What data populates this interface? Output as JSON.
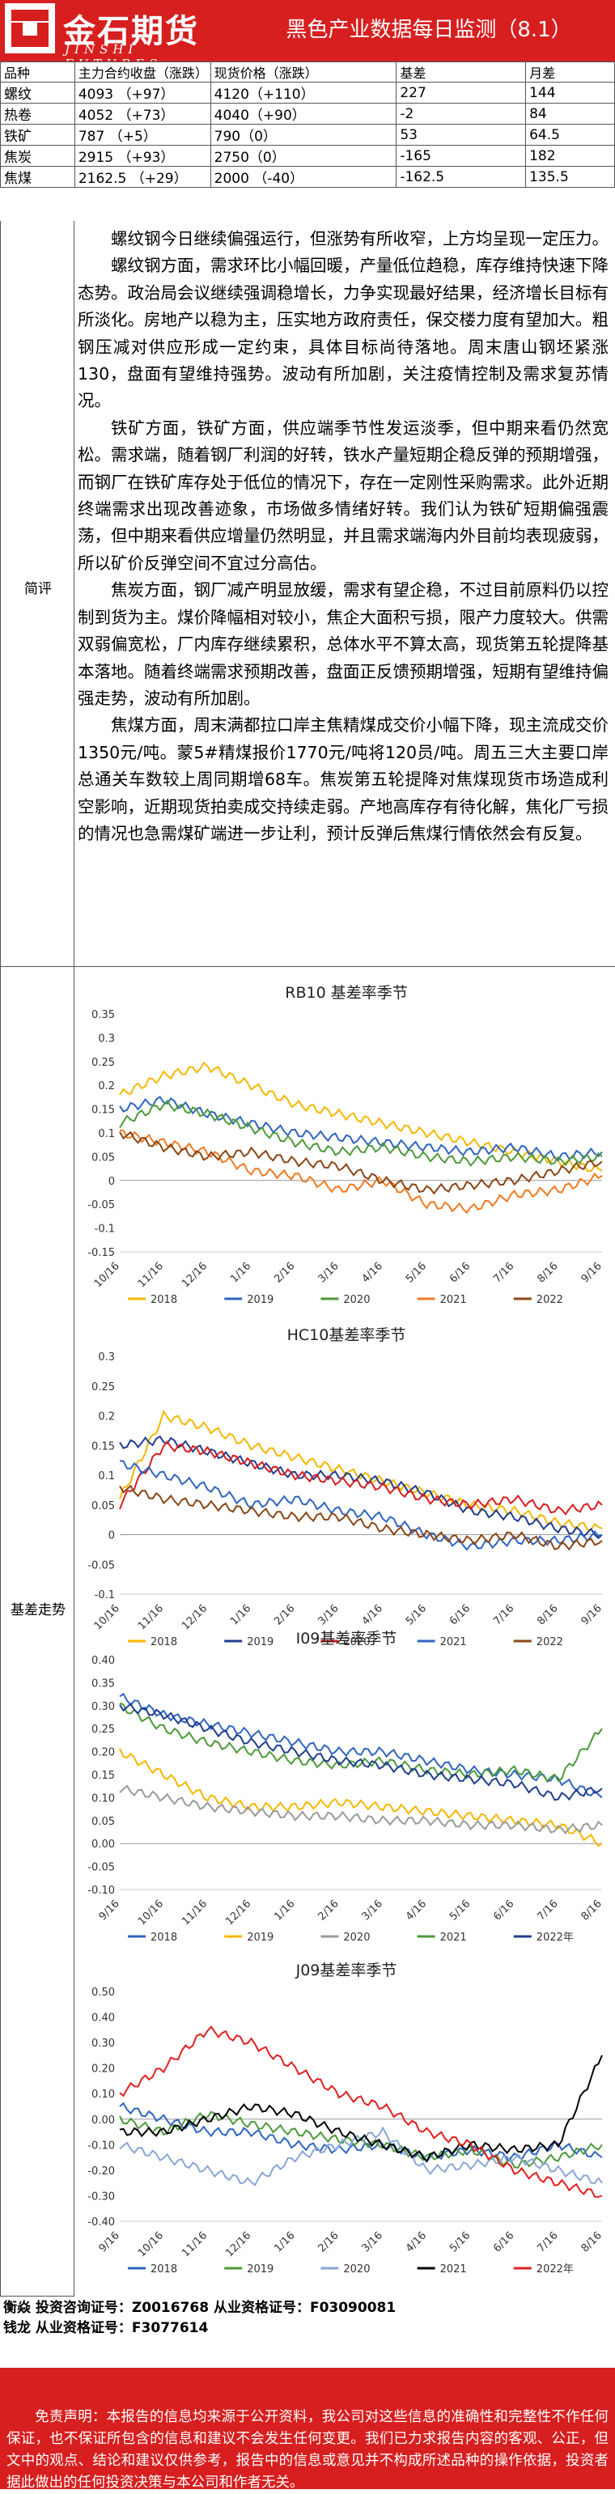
{
  "header": {
    "logo_cn": "金石期货",
    "logo_en": "JINSHI FUTURES",
    "title": "黑色产业数据每日监测（8.1）"
  },
  "table": {
    "headers": [
      "品种",
      "主力合约收盘（涨跌）",
      "现货价格（涨跌）",
      "基差",
      "月差"
    ],
    "rows": [
      [
        "螺纹",
        "4093 （+97）",
        "4120（+110）",
        "227",
        "144"
      ],
      [
        "热卷",
        "4052 （+73）",
        "4040（+90）",
        "-2",
        "84"
      ],
      [
        "铁矿",
        "787 （+5）",
        "790（0）",
        "53",
        "64.5"
      ],
      [
        "焦炭",
        "2915 （+93）",
        "2750（0）",
        "-165",
        "182"
      ],
      [
        "焦煤",
        "2162.5 （+29）",
        "2000 （-40）",
        "-162.5",
        "135.5"
      ]
    ]
  },
  "comment": {
    "label": "简评",
    "paragraphs": [
      "螺纹钢今日继续偏强运行，但涨势有所收窄，上方均呈现一定压力。",
      "螺纹钢方面，需求环比小幅回暖，产量低位趋稳，库存维持快速下降态势。政治局会议继续强调稳增长，力争实现最好结果，经济增长目标有所淡化。房地产以稳为主，压实地方政府责任，保交楼力度有望加大。粗钢压减对供应形成一定约束，具体目标尚待落地。周末唐山钢坯紧涨130，盘面有望维持强势。波动有所加剧，关注疫情控制及需求复苏情况。",
      "铁矿方面，铁矿方面，供应端季节性发运淡季，但中期来看仍然宽松。需求端，随着钢厂利润的好转，铁水产量短期企稳反弹的预期增强，而钢厂在铁矿库存处于低位的情况下，存在一定刚性采购需求。此外近期终端需求出现改善迹象，市场做多情绪好转。我们认为铁矿短期偏强震荡，但中期来看供应增量仍然明显，并且需求端海内外目前均表现疲弱，所以矿价反弹空间不宜过分高估。",
      "焦炭方面，钢厂减产明显放缓，需求有望企稳，不过目前原料仍以控制到货为主。煤价降幅相对较小，焦企大面积亏损，限产力度较大。供需双弱偏宽松，厂内库存继续累积，总体水平不算太高，现货第五轮提降基本落地。随着终端需求预期改善，盘面正反馈预期增强，短期有望维持偏强走势，波动有所加剧。",
      "焦煤方面，周末满都拉口岸主焦精煤成交价小幅下降，现主流成交价1350元/吨。蒙5#精煤报价1770元/吨将120员/吨。周五三大主要口岸总通关车数较上周同期增68车。焦炭第五轮提降对焦煤现货市场造成利空影响，近期现货拍卖成交持续走弱。产地高库存有待化解，焦化厂亏损的情况也急需煤矿端进一步让利，预计反弹后焦煤行情依然会有反复。"
    ]
  },
  "basis_label": "基差走势",
  "chart_data": [
    {
      "type": "line",
      "title": "RB10 基差率季节",
      "x_ticks": [
        "10/16",
        "11/16",
        "12/16",
        "1/16",
        "2/16",
        "3/16",
        "4/16",
        "5/16",
        "6/16",
        "7/16",
        "8/16",
        "9/16"
      ],
      "y_ticks": [
        "0.35",
        "0.3",
        "0.25",
        "0.2",
        "0.15",
        "0.1",
        "0.05",
        "0",
        "-0.05",
        "-0.1",
        "-0.15"
      ],
      "ylim": [
        -0.15,
        0.35
      ],
      "series": [
        {
          "name": "2018",
          "color": "#f5b800",
          "values": [
            0.18,
            0.22,
            0.24,
            0.2,
            0.16,
            0.14,
            0.12,
            0.1,
            0.08,
            0.06,
            0.04,
            0.02
          ]
        },
        {
          "name": "2019",
          "color": "#2f65c0",
          "values": [
            0.15,
            0.17,
            0.14,
            0.12,
            0.1,
            0.09,
            0.08,
            0.07,
            0.06,
            0.07,
            0.05,
            0.06
          ]
        },
        {
          "name": "2020",
          "color": "#4d9a3a",
          "values": [
            0.12,
            0.16,
            0.14,
            0.11,
            0.08,
            0.06,
            0.07,
            0.05,
            0.04,
            0.05,
            0.04,
            0.05
          ]
        },
        {
          "name": "2021",
          "color": "#f07a20",
          "values": [
            0.1,
            0.08,
            0.06,
            0.02,
            0.01,
            -0.02,
            0.0,
            -0.05,
            -0.06,
            -0.03,
            -0.02,
            0.01
          ]
        },
        {
          "name": "2022",
          "color": "#8a4515",
          "values": [
            0.1,
            0.07,
            0.05,
            0.06,
            0.04,
            0.03,
            0.0,
            -0.02,
            -0.01,
            0.0,
            0.02,
            0.04
          ]
        }
      ]
    },
    {
      "type": "line",
      "title": "HC10基差率季节",
      "x_ticks": [
        "10/16",
        "11/16",
        "12/16",
        "1/16",
        "2/16",
        "3/16",
        "4/16",
        "5/16",
        "6/16",
        "7/16",
        "8/16",
        "9/16"
      ],
      "y_ticks": [
        "0.3",
        "0.25",
        "0.2",
        "0.15",
        "0.1",
        "0.05",
        "0",
        "-0.05",
        "-0.1"
      ],
      "ylim": [
        -0.1,
        0.3
      ],
      "series": [
        {
          "name": "2018",
          "color": "#f5b800",
          "values": [
            0.06,
            0.2,
            0.18,
            0.15,
            0.13,
            0.11,
            0.09,
            0.07,
            0.05,
            0.04,
            0.02,
            0.01
          ]
        },
        {
          "name": "2019",
          "color": "#203e8f",
          "values": [
            0.15,
            0.16,
            0.14,
            0.12,
            0.1,
            0.1,
            0.09,
            0.07,
            0.04,
            0.03,
            0.01,
            0.0
          ]
        },
        {
          "name": "2020",
          "color": "#d71f1f",
          "values": [
            0.05,
            0.15,
            0.14,
            0.12,
            0.1,
            0.09,
            0.08,
            0.06,
            0.05,
            0.06,
            0.04,
            0.05
          ]
        },
        {
          "name": "2021",
          "color": "#2f65c0",
          "values": [
            0.12,
            0.1,
            0.08,
            0.05,
            0.06,
            0.04,
            0.03,
            0.0,
            -0.02,
            -0.01,
            -0.01,
            0.0
          ]
        },
        {
          "name": "2022",
          "color": "#8a4515",
          "values": [
            0.08,
            0.06,
            0.05,
            0.04,
            0.03,
            0.03,
            0.01,
            0.0,
            -0.01,
            0.0,
            -0.02,
            -0.01
          ]
        }
      ]
    },
    {
      "type": "line",
      "title": "I09基差率季节",
      "x_ticks": [
        "9/16",
        "10/16",
        "11/16",
        "12/16",
        "1/16",
        "2/16",
        "3/16",
        "4/16",
        "5/16",
        "6/16",
        "7/16",
        "8/16"
      ],
      "y_ticks": [
        "0.40",
        "0.35",
        "0.30",
        "0.25",
        "0.20",
        "0.15",
        "0.10",
        "0.05",
        "0.00",
        "-0.05",
        "-0.10"
      ],
      "ylim": [
        -0.1,
        0.4
      ],
      "series": [
        {
          "name": "2018",
          "color": "#2f65c0",
          "values": [
            0.32,
            0.28,
            0.26,
            0.24,
            0.22,
            0.2,
            0.2,
            0.18,
            0.16,
            0.15,
            0.14,
            0.1
          ]
        },
        {
          "name": "2019",
          "color": "#f5b800",
          "values": [
            0.2,
            0.15,
            0.1,
            0.08,
            0.08,
            0.09,
            0.08,
            0.07,
            0.06,
            0.05,
            0.04,
            0.0
          ]
        },
        {
          "name": "2020",
          "color": "#9a9a9a",
          "values": [
            0.12,
            0.1,
            0.08,
            0.07,
            0.06,
            0.06,
            0.05,
            0.05,
            0.04,
            0.04,
            0.03,
            0.04
          ]
        },
        {
          "name": "2021",
          "color": "#4d9a3a",
          "values": [
            0.3,
            0.25,
            0.22,
            0.2,
            0.18,
            0.17,
            0.18,
            0.16,
            0.15,
            0.16,
            0.14,
            0.25
          ]
        },
        {
          "name": "2022年",
          "color": "#203e8f",
          "values": [
            0.3,
            0.28,
            0.25,
            0.22,
            0.2,
            0.18,
            0.17,
            0.15,
            0.14,
            0.13,
            0.1,
            0.12
          ]
        }
      ]
    },
    {
      "type": "line",
      "title": "J09基差率季节",
      "x_ticks": [
        "9/16",
        "10/16",
        "11/16",
        "12/16",
        "1/16",
        "2/16",
        "3/16",
        "4/16",
        "5/16",
        "6/16",
        "7/16",
        "8/16"
      ],
      "y_ticks": [
        "0.50",
        "0.40",
        "0.30",
        "0.20",
        "0.10",
        "0.00",
        "-0.10",
        "-0.20",
        "-0.30",
        "-0.40"
      ],
      "ylim": [
        -0.4,
        0.5
      ],
      "series": [
        {
          "name": "2018",
          "color": "#2f65c0",
          "values": [
            0.05,
            0.0,
            -0.05,
            -0.05,
            -0.1,
            -0.12,
            -0.1,
            -0.15,
            -0.12,
            -0.15,
            -0.1,
            -0.15
          ]
        },
        {
          "name": "2019",
          "color": "#4d9a3a",
          "values": [
            0.0,
            -0.05,
            0.02,
            -0.02,
            -0.05,
            -0.08,
            -0.1,
            -0.15,
            -0.12,
            -0.18,
            -0.15,
            -0.1
          ]
        },
        {
          "name": "2020",
          "color": "#8aa6d6",
          "values": [
            -0.1,
            -0.15,
            -0.2,
            -0.25,
            -0.15,
            -0.1,
            -0.05,
            -0.2,
            -0.18,
            -0.15,
            -0.2,
            -0.25
          ]
        },
        {
          "name": "2021",
          "color": "#000000",
          "values": [
            -0.05,
            -0.05,
            0.0,
            0.05,
            0.02,
            -0.05,
            -0.1,
            -0.15,
            -0.1,
            -0.12,
            -0.1,
            0.25
          ]
        },
        {
          "name": "2022年",
          "color": "#e02020",
          "values": [
            0.1,
            0.2,
            0.35,
            0.3,
            0.2,
            0.1,
            0.05,
            -0.05,
            -0.1,
            -0.2,
            -0.25,
            -0.3
          ]
        }
      ]
    }
  ],
  "contacts": [
    "衡焱 投资咨询证号：Z0016768 从业资格证号：F03090081",
    "钱龙 从业资格证号：F3077614"
  ],
  "disclaimer": "免责声明：本报告的信息均来源于公开资料，我公司对这些信息的准确性和完整性不作任何保证，也不保证所包含的信息和建议不会发生任何变更。我们已力求报告内容的客观、公正，但文中的观点、结论和建议仅供参考，报告中的信息或意见并不构成所述品种的操作依据，投资者据此做出的任何投资决策与本公司和作者无关。",
  "colors": {
    "brand_red": "#d71f1f"
  }
}
